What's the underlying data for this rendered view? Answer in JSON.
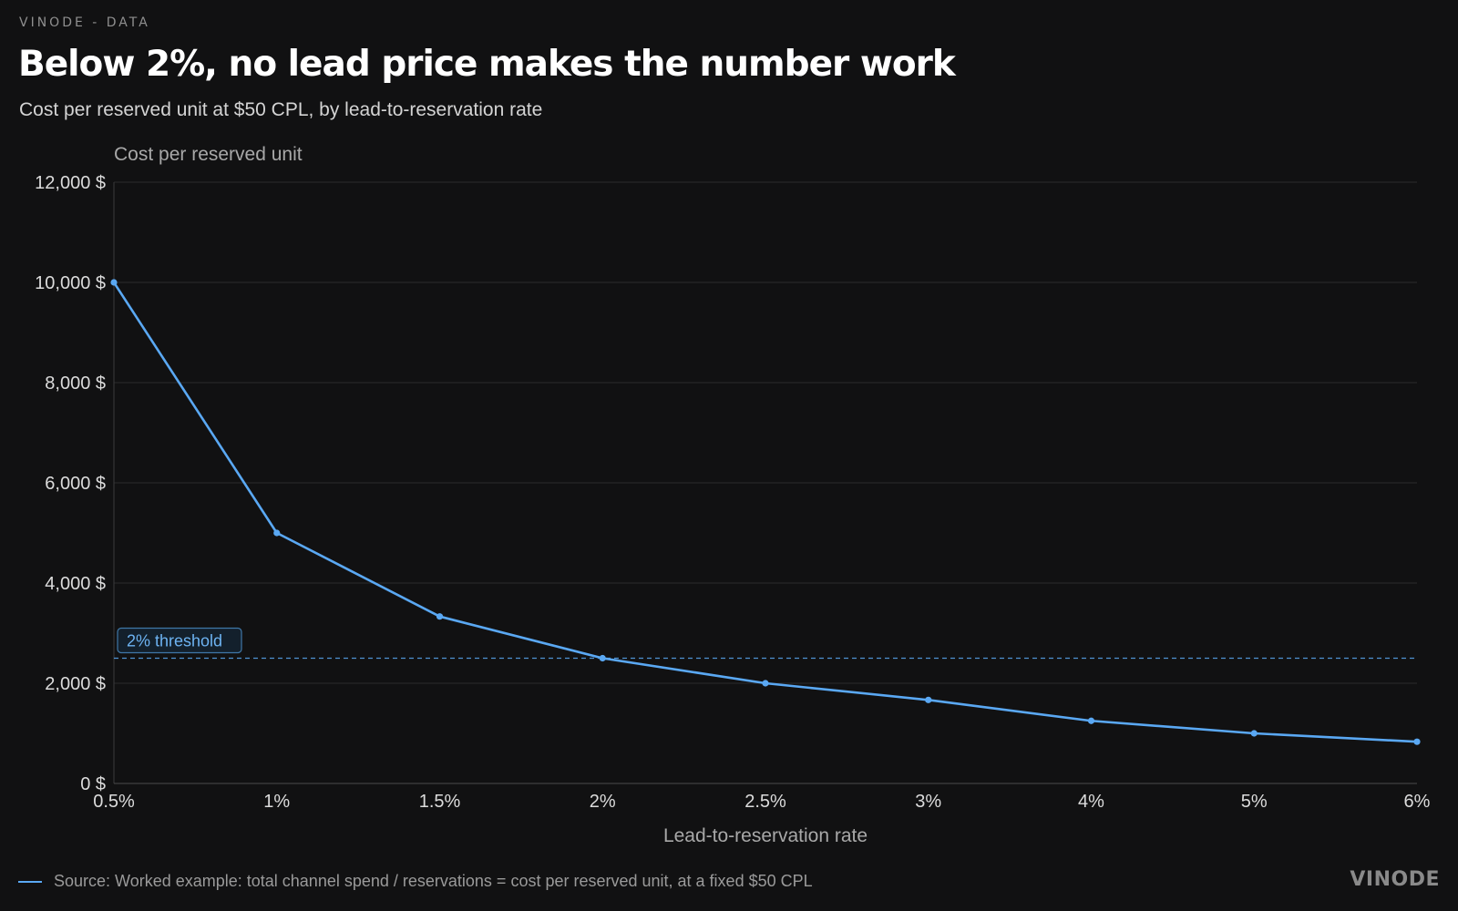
{
  "header": {
    "eyebrow": "VINODE - DATA",
    "title": "Below 2%, no lead price makes the number work",
    "subtitle": "Cost per reserved unit at $50 CPL, by lead-to-reservation rate"
  },
  "footer": {
    "source": "Source: Worked example: total channel spend / reservations = cost per reserved unit, at a fixed $50 CPL",
    "brand": "VINODE"
  },
  "colors": {
    "background": "#111112",
    "line": "#5aa8f3",
    "threshold": "#5aa8f3",
    "grid": "#2a2a2c"
  },
  "chart_data": {
    "type": "line",
    "ylabel": "Cost per reserved unit",
    "xlabel": "Lead-to-reservation rate",
    "categories": [
      "0.5%",
      "1%",
      "1.5%",
      "2%",
      "2.5%",
      "3%",
      "4%",
      "5%",
      "6%"
    ],
    "series": [
      {
        "values": [
          10000,
          5000,
          3333,
          2500,
          2000,
          1667,
          1250,
          1000,
          833
        ]
      }
    ],
    "ylim": [
      0,
      12000
    ],
    "yticks": [
      0,
      2000,
      4000,
      6000,
      8000,
      10000,
      12000
    ],
    "ytick_labels": [
      "0 $",
      "2,000 $",
      "4,000 $",
      "6,000 $",
      "8,000 $",
      "10,000 $",
      "12,000 $"
    ],
    "grid": true,
    "annotations": [
      {
        "label": "2% threshold",
        "y": 2500,
        "style": "dashed"
      }
    ]
  }
}
